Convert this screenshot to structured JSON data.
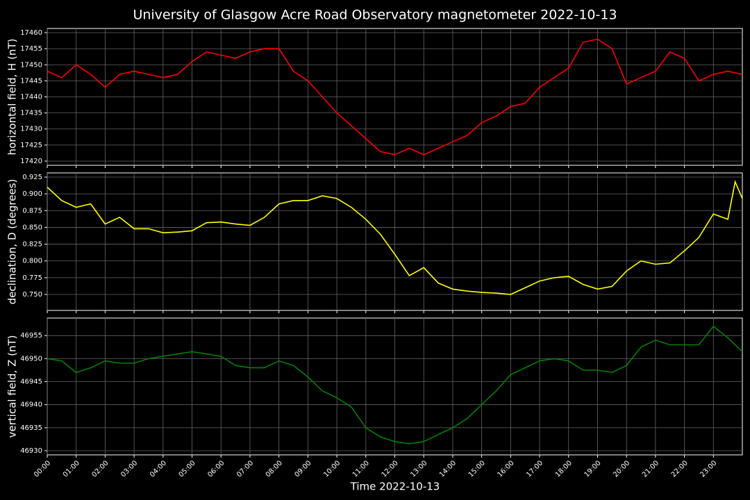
{
  "chart_data": [
    {
      "type": "line",
      "title": "University of Glasgow Acre Road Observatory magnetometer 2022-10-13",
      "ylabel": "horizontal field, H (nT)",
      "color": "#ff0000",
      "grid": true,
      "x": [
        "00:00",
        "00:30",
        "01:00",
        "01:30",
        "02:00",
        "02:30",
        "03:00",
        "03:30",
        "04:00",
        "04:30",
        "05:00",
        "05:30",
        "06:00",
        "06:30",
        "07:00",
        "07:30",
        "08:00",
        "08:30",
        "09:00",
        "09:30",
        "10:00",
        "10:30",
        "11:00",
        "11:30",
        "12:00",
        "12:30",
        "13:00",
        "13:30",
        "14:00",
        "14:30",
        "15:00",
        "15:30",
        "16:00",
        "16:30",
        "17:00",
        "17:30",
        "18:00",
        "18:30",
        "19:00",
        "19:30",
        "20:00",
        "20:30",
        "21:00",
        "21:30",
        "22:00",
        "22:30",
        "23:00",
        "23:30",
        "24:00"
      ],
      "values": [
        17448,
        17446,
        17450,
        17447,
        17443,
        17447,
        17448,
        17447,
        17446,
        17447,
        17451,
        17454,
        17453,
        17452,
        17454,
        17455,
        17455,
        17448,
        17445,
        17440,
        17435,
        17431,
        17427,
        17423,
        17422,
        17424,
        17422,
        17424,
        17426,
        17428,
        17432,
        17434,
        17437,
        17438,
        17443,
        17446,
        17449,
        17457,
        17458,
        17455,
        17444,
        17446,
        17448,
        17454,
        17452,
        17445,
        17447,
        17448,
        17447
      ],
      "ylim": [
        17418.7,
        17461.3
      ],
      "yticks": [
        17420,
        17425,
        17430,
        17435,
        17440,
        17445,
        17450,
        17455,
        17460
      ]
    },
    {
      "type": "line",
      "ylabel": "declination, D (degrees)",
      "color": "#ffff00",
      "grid": true,
      "x": [
        "00:00",
        "00:30",
        "01:00",
        "01:30",
        "02:00",
        "02:30",
        "03:00",
        "03:30",
        "04:00",
        "04:30",
        "05:00",
        "05:30",
        "06:00",
        "06:30",
        "07:00",
        "07:30",
        "08:00",
        "08:30",
        "09:00",
        "09:30",
        "10:00",
        "10:30",
        "11:00",
        "11:30",
        "12:00",
        "12:30",
        "13:00",
        "13:30",
        "14:00",
        "14:30",
        "15:00",
        "15:30",
        "16:00",
        "16:30",
        "17:00",
        "17:30",
        "18:00",
        "18:30",
        "19:00",
        "19:30",
        "20:00",
        "20:30",
        "21:00",
        "21:30",
        "22:00",
        "22:30",
        "23:00",
        "23:30",
        "23:45",
        "24:00"
      ],
      "values": [
        0.91,
        0.89,
        0.88,
        0.885,
        0.855,
        0.865,
        0.848,
        0.848,
        0.842,
        0.843,
        0.845,
        0.857,
        0.858,
        0.855,
        0.853,
        0.865,
        0.885,
        0.89,
        0.89,
        0.897,
        0.893,
        0.88,
        0.862,
        0.84,
        0.81,
        0.778,
        0.79,
        0.767,
        0.758,
        0.755,
        0.753,
        0.752,
        0.75,
        0.76,
        0.77,
        0.775,
        0.777,
        0.765,
        0.758,
        0.762,
        0.785,
        0.8,
        0.795,
        0.797,
        0.815,
        0.835,
        0.87,
        0.862,
        0.918,
        0.893
      ],
      "ylim": [
        0.7262,
        0.9312
      ],
      "yticks": [
        {
          "value": 0.75,
          "label": "0.750"
        },
        0.775,
        {
          "value": 0.8,
          "label": "0.800"
        },
        0.825,
        {
          "value": 0.85,
          "label": "0.850"
        },
        0.875,
        {
          "value": 0.9,
          "label": "0.900"
        },
        0.925
      ]
    },
    {
      "type": "line",
      "ylabel": "vertical field, Z (nT)",
      "xlabel": "Time 2022-10-13",
      "color": "#008000",
      "grid": true,
      "x": [
        "00:00",
        "00:30",
        "01:00",
        "01:30",
        "02:00",
        "02:30",
        "03:00",
        "03:30",
        "04:00",
        "04:30",
        "05:00",
        "05:30",
        "06:00",
        "06:30",
        "07:00",
        "07:30",
        "08:00",
        "08:30",
        "09:00",
        "09:30",
        "10:00",
        "10:30",
        "11:00",
        "11:30",
        "12:00",
        "12:30",
        "13:00",
        "13:30",
        "14:00",
        "14:30",
        "15:00",
        "15:30",
        "16:00",
        "16:30",
        "17:00",
        "17:30",
        "18:00",
        "18:30",
        "19:00",
        "19:30",
        "20:00",
        "20:30",
        "21:00",
        "21:30",
        "22:00",
        "22:30",
        "23:00",
        "23:30",
        "24:00"
      ],
      "values": [
        46950,
        46949.5,
        46947,
        46948,
        46949.5,
        46949,
        46949,
        46950,
        46950.5,
        46951,
        46951.5,
        46951,
        46950.5,
        46948.5,
        46948,
        46948,
        46949.5,
        46948.5,
        46946,
        46943,
        46941.5,
        46939.5,
        46935,
        46933,
        46932,
        46931.5,
        46932,
        46933.5,
        46935,
        46937,
        46940,
        46943,
        46946.5,
        46948,
        46949.5,
        46950,
        46949.5,
        46947.5,
        46947.5,
        46947,
        46948.5,
        46952.5,
        46954,
        46953,
        46953,
        46953,
        46957,
        46954.5,
        46951.5
      ],
      "ylim": [
        46929.1,
        46958.8
      ],
      "yticks": [
        46930,
        46935,
        46940,
        46945,
        46950,
        46955
      ],
      "xlim": [
        "00:00",
        "24:00"
      ],
      "xticks": [
        "00:00",
        "01:00",
        "02:00",
        "03:00",
        "04:00",
        "05:00",
        "06:00",
        "07:00",
        "08:00",
        "09:00",
        "10:00",
        "11:00",
        "12:00",
        "13:00",
        "14:00",
        "15:00",
        "16:00",
        "17:00",
        "18:00",
        "19:00",
        "20:00",
        "21:00",
        "22:00",
        "23:00"
      ]
    }
  ]
}
